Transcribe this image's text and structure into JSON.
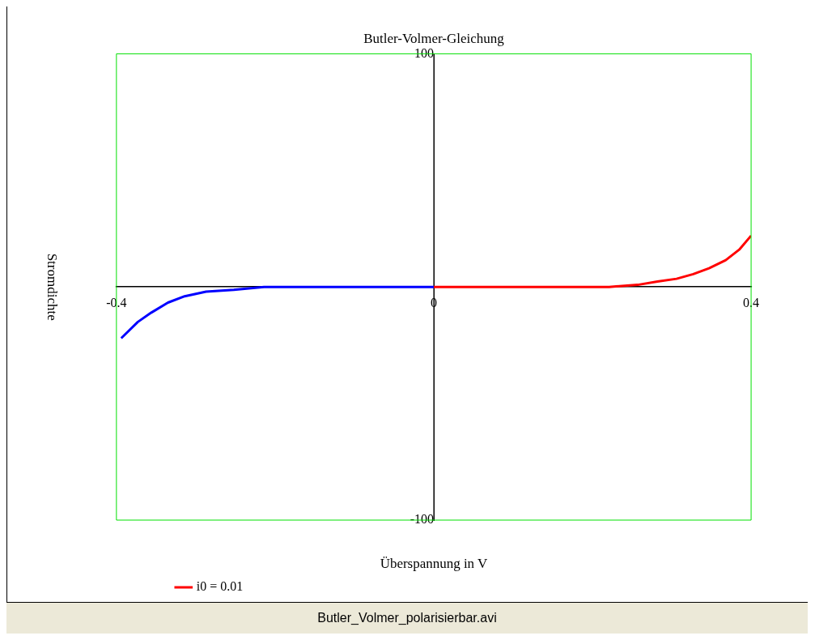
{
  "chart_data": {
    "type": "line",
    "title": "Butler-Volmer-Gleichung",
    "xlabel": "Überspannung in V",
    "ylabel": "Stromdichte",
    "xlim": [
      -0.4,
      0.4
    ],
    "xticks": [
      -0.4,
      0,
      0.4
    ],
    "ylim": [
      -100,
      100
    ],
    "yticks": [
      -100,
      100
    ],
    "grid": false,
    "legend": "bottom left",
    "marker": "none",
    "line_style": "solid",
    "series": [
      {
        "color": "#0000ff",
        "x": [
          -0.394,
          -0.373,
          -0.356,
          -0.335,
          -0.314,
          -0.287,
          -0.252,
          -0.214,
          -0.1,
          0
        ],
        "values": [
          -22,
          -15,
          -11,
          -6.7,
          -4,
          -2,
          -1.2,
          0,
          0,
          0
        ]
      },
      {
        "name": "i0 = 0.01",
        "color": "#ff0000",
        "x": [
          0,
          0.1,
          0.221,
          0.257,
          0.282,
          0.306,
          0.327,
          0.347,
          0.368,
          0.385,
          0.4
        ],
        "values": [
          0,
          0,
          0,
          0.9,
          2.3,
          3.5,
          5.5,
          8,
          11.5,
          16,
          22
        ]
      }
    ],
    "annotations": [
      "Butler_Volmer_polarisierbar.avi"
    ]
  }
}
